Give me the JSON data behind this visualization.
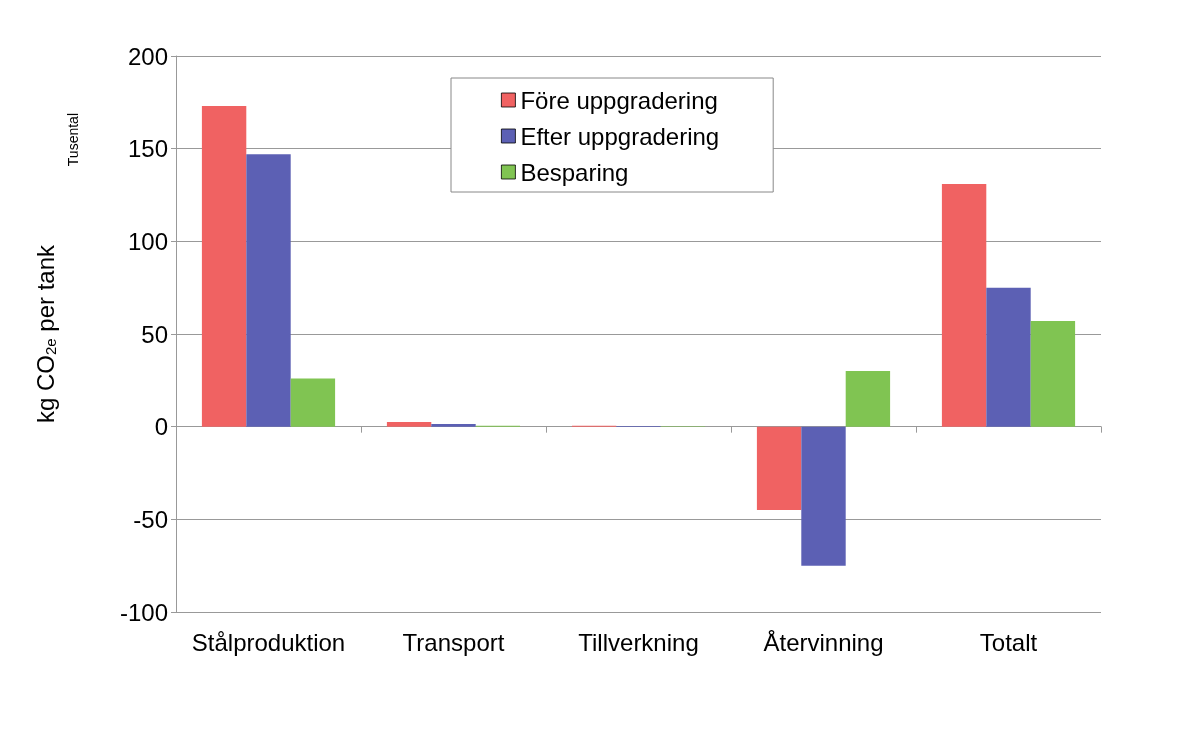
{
  "chart_data": {
    "type": "bar",
    "ylabel": "kg CO$_{2e}$ per tank",
    "annotations": [
      "Tusental"
    ],
    "categories": [
      "Stålproduktion",
      "Transport",
      "Tillverkning",
      "Återvinning",
      "Totalt"
    ],
    "series": [
      {
        "name": "Före uppgradering",
        "color": "#f06262",
        "values": [
          173,
          2.5,
          0.5,
          -45,
          131
        ]
      },
      {
        "name": "Efter uppgradering",
        "color": "#5c60b4",
        "values": [
          147,
          1.5,
          0.3,
          -75,
          75
        ]
      },
      {
        "name": "Besparing",
        "color": "#80c452",
        "values": [
          26,
          0.5,
          0.2,
          30,
          57
        ]
      }
    ],
    "ylim": [
      -100,
      200
    ],
    "yticks": [
      -100,
      -50,
      0,
      50,
      100,
      150,
      200
    ],
    "grid": "y",
    "legend": "top"
  }
}
